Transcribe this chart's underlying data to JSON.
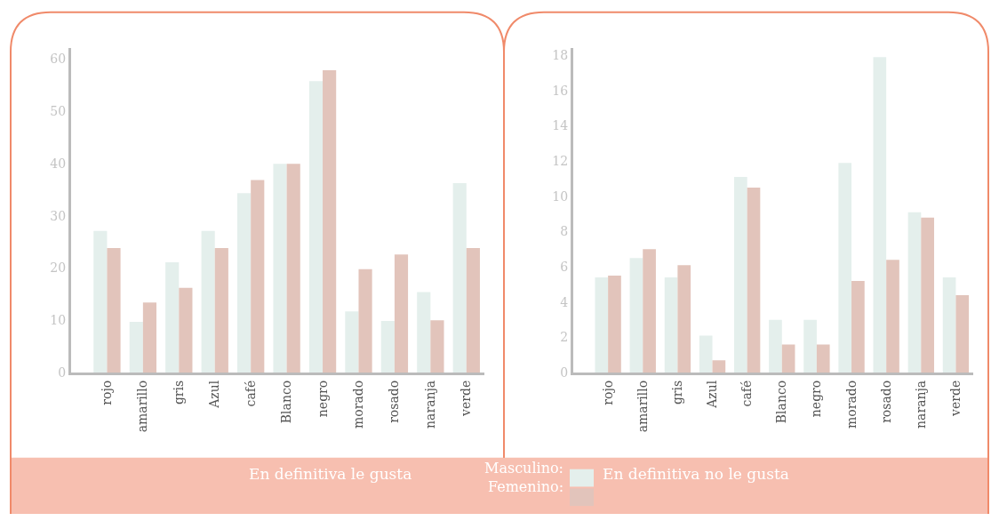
{
  "chart_data": [
    {
      "type": "bar",
      "title": "En definitiva le gusta",
      "categories": [
        "rojo",
        "amarillo",
        "gris",
        "Azul",
        "café",
        "Blanco",
        "negro",
        "morado",
        "rosado",
        "naranja",
        "verde"
      ],
      "series": [
        {
          "name": "Masculino:",
          "color": "#e4efec",
          "values": [
            27.1,
            9.7,
            21.1,
            27.1,
            34.3,
            39.9,
            55.7,
            11.7,
            9.9,
            15.4,
            36.2
          ]
        },
        {
          "name": "Femenino:",
          "color": "#e2c4bb",
          "values": [
            23.8,
            13.4,
            16.2,
            23.8,
            36.8,
            39.9,
            57.8,
            19.8,
            22.6,
            10.0,
            23.8
          ]
        }
      ],
      "ylim": [
        0,
        62
      ],
      "yticks": [
        0,
        10,
        20,
        30,
        40,
        50,
        60
      ],
      "legend": "bottom"
    },
    {
      "type": "bar",
      "title": "En definitiva no le gusta",
      "categories": [
        "rojo",
        "amarillo",
        "gris",
        "Azul",
        "café",
        "Blanco",
        "negro",
        "morado",
        "rosado",
        "naranja",
        "verde"
      ],
      "series": [
        {
          "color": "#e4efec",
          "values": [
            5.4,
            6.5,
            5.4,
            2.1,
            11.1,
            3.0,
            3.0,
            11.9,
            17.9,
            9.1,
            5.4
          ]
        },
        {
          "color": "#e2c4bb",
          "values": [
            5.5,
            7.0,
            6.1,
            0.7,
            10.5,
            1.6,
            1.6,
            5.2,
            6.4,
            8.8,
            4.4
          ]
        }
      ],
      "ylim": [
        0,
        18.4
      ],
      "yticks": [
        0,
        2,
        4,
        6,
        8,
        10,
        12,
        14,
        16,
        18
      ]
    }
  ]
}
